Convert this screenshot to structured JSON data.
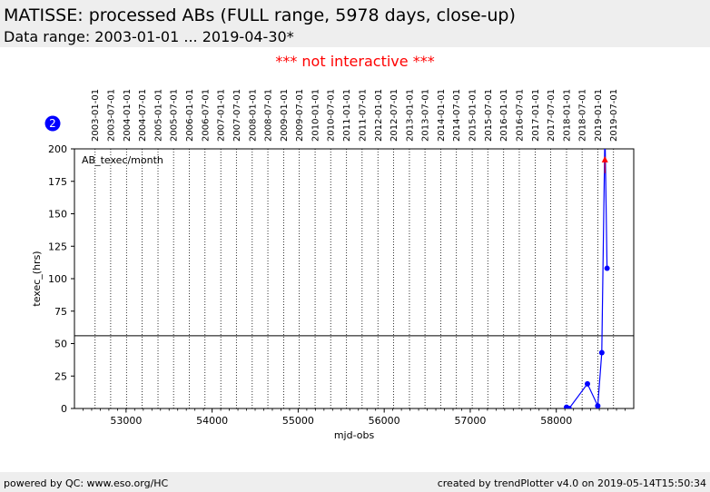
{
  "header": {
    "title": "MATISSE: processed ABs (FULL range, 5978 days, close-up)",
    "subtitle": "Data range: 2003-01-01 ... 2019-04-30*"
  },
  "notice": "*** not interactive ***",
  "footer": {
    "left": "powered by QC: www.eso.org/HC",
    "right": "created by trendPlotter v4.0 on 2019-05-14T15:50:34"
  },
  "badge": "2",
  "colors": {
    "series": "#0000ff",
    "outlier_marker": "#ff0000",
    "notice": "#ff0000",
    "header_bg": "#eeeeee"
  },
  "chart_data": {
    "type": "line",
    "panel_label": "AB_texec/month",
    "xlabel": "mjd-obs",
    "ylabel": "texec_(hrs)",
    "xlim": [
      52400,
      58900
    ],
    "ylim": [
      0,
      200
    ],
    "x_ticks": [
      53000,
      54000,
      55000,
      56000,
      57000,
      58000
    ],
    "x_tick_labels": [
      "53000",
      "54000",
      "55000",
      "56000",
      "57000",
      "58000"
    ],
    "y_ticks": [
      0,
      25,
      50,
      75,
      100,
      125,
      150,
      175,
      200
    ],
    "y_tick_labels": [
      "0",
      "25",
      "50",
      "75",
      "100",
      "125",
      "150",
      "175",
      "200"
    ],
    "reference_line": 56,
    "date_grid": [
      {
        "mjd": 52640,
        "label": "2003-01-01"
      },
      {
        "mjd": 52821,
        "label": "2003-07-01"
      },
      {
        "mjd": 53005,
        "label": "2004-01-01"
      },
      {
        "mjd": 53187,
        "label": "2004-07-01"
      },
      {
        "mjd": 53371,
        "label": "2005-01-01"
      },
      {
        "mjd": 53552,
        "label": "2005-07-01"
      },
      {
        "mjd": 53736,
        "label": "2006-01-01"
      },
      {
        "mjd": 53917,
        "label": "2006-07-01"
      },
      {
        "mjd": 54101,
        "label": "2007-01-01"
      },
      {
        "mjd": 54282,
        "label": "2007-07-01"
      },
      {
        "mjd": 54466,
        "label": "2008-01-01"
      },
      {
        "mjd": 54648,
        "label": "2008-07-01"
      },
      {
        "mjd": 54832,
        "label": "2009-01-01"
      },
      {
        "mjd": 55013,
        "label": "2009-07-01"
      },
      {
        "mjd": 55197,
        "label": "2010-01-01"
      },
      {
        "mjd": 55378,
        "label": "2010-07-01"
      },
      {
        "mjd": 55562,
        "label": "2011-01-01"
      },
      {
        "mjd": 55743,
        "label": "2011-07-01"
      },
      {
        "mjd": 55927,
        "label": "2012-01-01"
      },
      {
        "mjd": 56109,
        "label": "2012-07-01"
      },
      {
        "mjd": 56293,
        "label": "2013-01-01"
      },
      {
        "mjd": 56474,
        "label": "2013-07-01"
      },
      {
        "mjd": 56658,
        "label": "2014-01-01"
      },
      {
        "mjd": 56839,
        "label": "2014-07-01"
      },
      {
        "mjd": 57023,
        "label": "2015-01-01"
      },
      {
        "mjd": 57204,
        "label": "2015-07-01"
      },
      {
        "mjd": 57388,
        "label": "2016-01-01"
      },
      {
        "mjd": 57570,
        "label": "2016-07-01"
      },
      {
        "mjd": 57754,
        "label": "2017-01-01"
      },
      {
        "mjd": 57935,
        "label": "2017-07-01"
      },
      {
        "mjd": 58119,
        "label": "2018-01-01"
      },
      {
        "mjd": 58300,
        "label": "2018-07-01"
      },
      {
        "mjd": 58484,
        "label": "2019-01-01"
      },
      {
        "mjd": 58665,
        "label": "2019-07-01"
      }
    ],
    "series": [
      {
        "x": [
          58119,
          58149,
          58362,
          58482,
          58529,
          58565,
          58590
        ],
        "y": [
          1,
          0,
          19,
          2,
          43,
          215,
          108
        ]
      }
    ],
    "clipped_marker": {
      "x": 58565,
      "y": 191
    }
  }
}
